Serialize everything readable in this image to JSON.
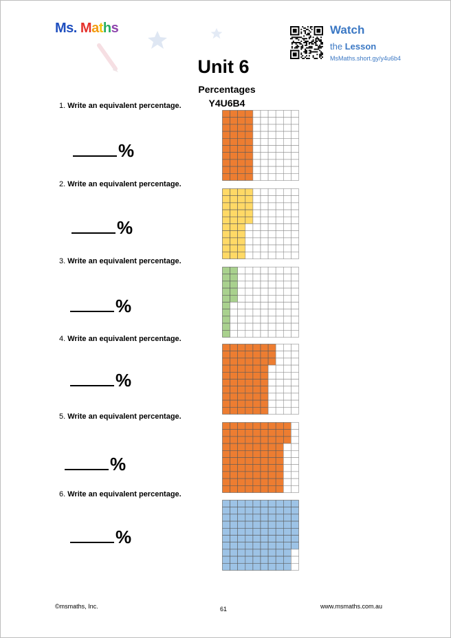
{
  "header": {
    "logo_part1": "Ms.",
    "logo_part2": "Maths",
    "watch_title": "Watch",
    "watch_sub_prefix": "the",
    "watch_sub_bold": "Lesson",
    "watch_url": "MsMaths.short.gy/y4u6b4"
  },
  "title": {
    "unit": "Unit 6",
    "topic": "Percentages",
    "code": "Y4U6B4"
  },
  "questions": [
    {
      "number": "1.",
      "prompt": "Write an equivalent percentage.",
      "percent_sign": "%",
      "shaded": 40,
      "color": "#ed7d31"
    },
    {
      "number": "2.",
      "prompt": "Write an equivalent percentage.",
      "percent_sign": "%",
      "shaded": 35,
      "color": "#ffd966"
    },
    {
      "number": "3.",
      "prompt": "Write an equivalent percentage.",
      "percent_sign": "%",
      "shaded": 15,
      "color": "#a9d18e"
    },
    {
      "number": "4.",
      "prompt": "Write an equivalent percentage.",
      "percent_sign": "%",
      "shaded": 63,
      "color": "#ed7d31"
    },
    {
      "number": "5.",
      "prompt": "Write an equivalent percentage.",
      "percent_sign": "%",
      "shaded": 83,
      "color": "#ed7d31"
    },
    {
      "number": "6.",
      "prompt": "Write an equivalent percentage.",
      "percent_sign": "%",
      "shaded": 97,
      "color": "#9dc3e6"
    }
  ],
  "footer": {
    "copyright": "©msmaths, Inc.",
    "page_number": "61",
    "website": "www.msmaths.com.au"
  }
}
